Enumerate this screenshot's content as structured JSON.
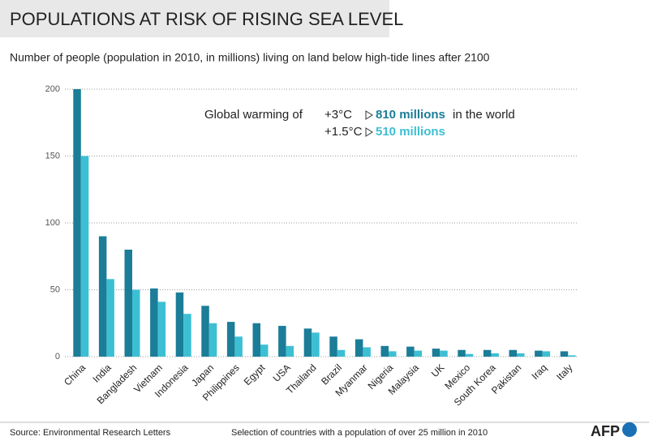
{
  "chart_data": {
    "type": "bar",
    "title": "POPULATIONS AT RISK OF RISING SEA LEVEL",
    "subtitle": "Number of people (population in 2010, in millions) living on land below high-tide lines after 2100",
    "annotation": {
      "lead": "Global warming of",
      "high_total": "810 millions",
      "high_suffix": "in the world",
      "low_total": "510 millions"
    },
    "categories": [
      "China",
      "India",
      "Bangladesh",
      "Vietnam",
      "Indonesia",
      "Japan",
      "Philippines",
      "Egypt",
      "USA",
      "Thailand",
      "Brazil",
      "Myanmar",
      "Nigeria",
      "Malaysia",
      "UK",
      "Mexico",
      "South Korea",
      "Pakistan",
      "Iraq",
      "Italy"
    ],
    "series": [
      {
        "name": "+3°C",
        "color": "#1b7d98",
        "values": [
          200,
          90,
          80,
          51,
          48,
          38,
          26,
          25,
          23,
          21,
          15,
          13,
          8,
          7.5,
          6,
          5,
          5,
          5,
          4.5,
          4
        ]
      },
      {
        "name": "+1.5°C",
        "color": "#3dbfd3",
        "values": [
          150,
          58,
          50,
          41,
          32,
          25,
          15,
          9,
          8,
          18,
          5,
          7,
          4,
          4.5,
          4.5,
          2,
          2.5,
          2.5,
          4,
          1
        ]
      }
    ],
    "ylim": [
      0,
      200
    ],
    "yticks": [
      0,
      50,
      100,
      150,
      200
    ],
    "grid": true,
    "source": "Source: Environmental Research Letters",
    "note": "Selection of countries with a population of over 25 million in 2010",
    "logo": "AFP"
  }
}
